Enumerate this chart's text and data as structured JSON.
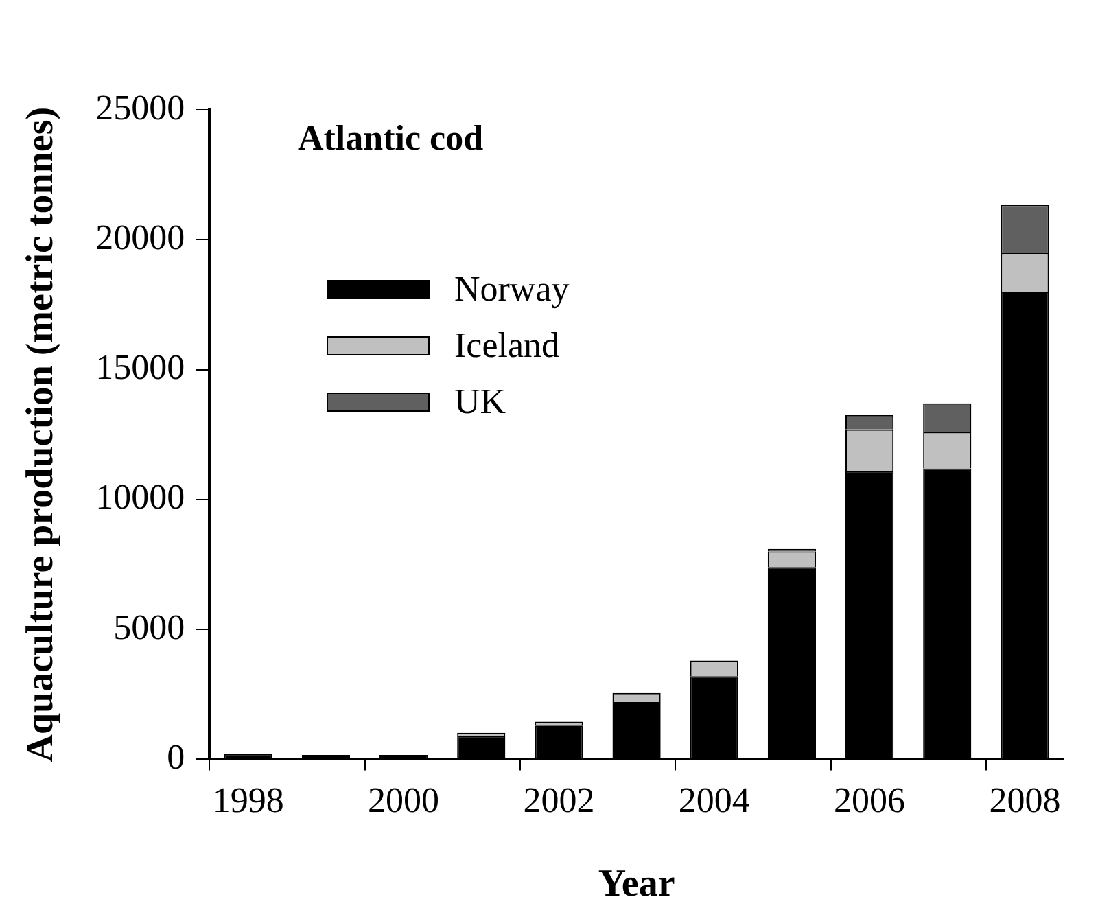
{
  "chart_data": {
    "type": "bar",
    "title": "Atlantic cod",
    "xlabel": "Year",
    "ylabel": "Aquaculture production (metric tonnes)",
    "categories": [
      "1998",
      null,
      "2000",
      null,
      "2002",
      null,
      "2004",
      null,
      "2006",
      null,
      "2008"
    ],
    "stacked": true,
    "legend": "top left",
    "grid": false,
    "ylim": [
      0,
      25000
    ],
    "yticks": [
      0,
      5000,
      10000,
      15000,
      20000,
      25000
    ],
    "series": [
      {
        "name": "Norway",
        "color": "#000000",
        "values": [
          200,
          170,
          170,
          900,
          1300,
          2200,
          3200,
          7400,
          11100,
          11200,
          18000
        ]
      },
      {
        "name": "Iceland",
        "color": "#c0c0c0",
        "values": [
          0,
          0,
          0,
          120,
          150,
          350,
          600,
          600,
          1600,
          1400,
          1500
        ]
      },
      {
        "name": "UK",
        "color": "#606060",
        "values": [
          0,
          0,
          0,
          0,
          0,
          0,
          0,
          100,
          550,
          1100,
          1850
        ]
      }
    ]
  }
}
